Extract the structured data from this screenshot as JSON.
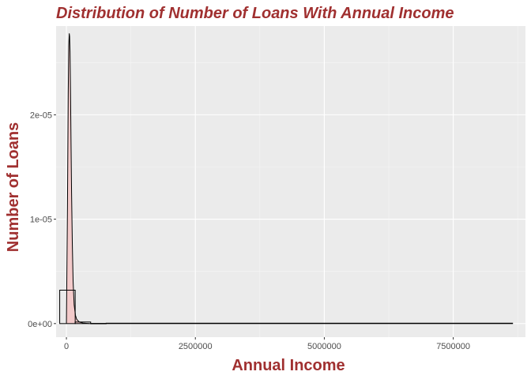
{
  "colors": {
    "title": "#a03030",
    "panel": "#ebebeb",
    "grid_major": "#ffffff",
    "grid_minor": "#f5f5f5",
    "hist_fill": "#ffffff",
    "hist_outline": "#000000",
    "density_fill": "#f4c6c6",
    "density_line": "#000000",
    "tick_text": "#4d4d4d"
  },
  "chart_data": {
    "type": "histogram-density",
    "title": "Distribution of Number of Loans With Annual Income",
    "xlabel": "Annual Income",
    "ylabel": "Number of Loans",
    "xlim": [
      -200000,
      8900000
    ],
    "ylim": [
      -1.3e-06,
      2.85e-05
    ],
    "x_ticks": [
      {
        "value": 0,
        "label": "0"
      },
      {
        "value": 2500000,
        "label": "2500000"
      },
      {
        "value": 5000000,
        "label": "5000000"
      },
      {
        "value": 7500000,
        "label": "7500000"
      }
    ],
    "y_ticks": [
      {
        "value": 0,
        "label": "0e+00"
      },
      {
        "value": 1e-05,
        "label": "1e-05"
      },
      {
        "value": 2e-05,
        "label": "2e-05"
      }
    ],
    "grid": true,
    "histogram": {
      "bins": [
        {
          "x0": -130000,
          "x1": 170000,
          "density": 3.2e-06
        },
        {
          "x0": 170000,
          "x1": 470000,
          "density": 1.5e-07
        },
        {
          "x0": 470000,
          "x1": 770000,
          "density": 2e-08
        },
        {
          "x0": 770000,
          "x1": 8650000,
          "density": 0.0
        }
      ]
    },
    "density_curve": {
      "x": [
        0,
        20000,
        35000,
        45000,
        55000,
        62000,
        70000,
        80000,
        90000,
        100000,
        115000,
        130000,
        150000,
        175000,
        200000,
        250000,
        320000,
        450000
      ],
      "y": [
        0,
        1.1e-05,
        2.2e-05,
        2.65e-05,
        2.78e-05,
        2.75e-05,
        2.6e-05,
        2.2e-05,
        1.7e-05,
        1.25e-05,
        7.5e-06,
        4e-06,
        1.8e-06,
        8e-07,
        4e-07,
        1.5e-07,
        5e-08,
        0
      ]
    }
  }
}
